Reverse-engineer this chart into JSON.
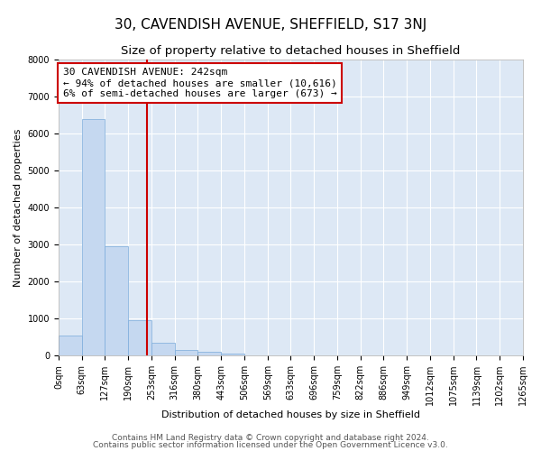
{
  "title": "30, CAVENDISH AVENUE, SHEFFIELD, S17 3NJ",
  "subtitle": "Size of property relative to detached houses in Sheffield",
  "xlabel": "Distribution of detached houses by size in Sheffield",
  "ylabel": "Number of detached properties",
  "bar_color": "#c5d8f0",
  "bar_edge_color": "#7aabdb",
  "background_color": "#dde8f5",
  "grid_color": "white",
  "bins": [
    "0sqm",
    "63sqm",
    "127sqm",
    "190sqm",
    "253sqm",
    "316sqm",
    "380sqm",
    "443sqm",
    "506sqm",
    "569sqm",
    "633sqm",
    "696sqm",
    "759sqm",
    "822sqm",
    "886sqm",
    "949sqm",
    "1012sqm",
    "1075sqm",
    "1139sqm",
    "1202sqm",
    "1265sqm"
  ],
  "bar_heights": [
    550,
    6380,
    2950,
    950,
    350,
    160,
    100,
    60,
    15,
    5,
    3,
    2,
    1,
    1,
    0,
    0,
    0,
    0,
    0,
    0
  ],
  "red_line_x": 3.8,
  "annotation_text_line1": "30 CAVENDISH AVENUE: 242sqm",
  "annotation_text_line2": "← 94% of detached houses are smaller (10,616)",
  "annotation_text_line3": "6% of semi-detached houses are larger (673) →",
  "annotation_box_color": "white",
  "annotation_box_edge_color": "#cc0000",
  "ylim": [
    0,
    8000
  ],
  "yticks": [
    0,
    1000,
    2000,
    3000,
    4000,
    5000,
    6000,
    7000,
    8000
  ],
  "footer_line1": "Contains HM Land Registry data © Crown copyright and database right 2024.",
  "footer_line2": "Contains public sector information licensed under the Open Government Licence v3.0.",
  "red_line_color": "#cc0000",
  "title_fontsize": 11,
  "subtitle_fontsize": 9.5,
  "axis_label_fontsize": 8,
  "tick_fontsize": 7,
  "annotation_fontsize": 8,
  "footer_fontsize": 6.5
}
